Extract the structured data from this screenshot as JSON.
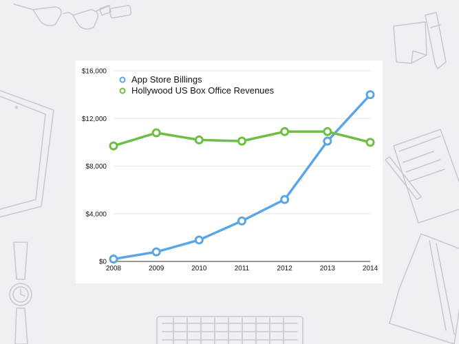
{
  "chart_data": {
    "type": "line",
    "title": "",
    "xlabel": "",
    "ylabel": "",
    "categories": [
      "2008",
      "2009",
      "2010",
      "2011",
      "2012",
      "2013",
      "2014"
    ],
    "yticks": [
      "$0",
      "$4,000",
      "$8,000",
      "$12,000",
      "$16,000"
    ],
    "ylim": [
      0,
      16000
    ],
    "grid": true,
    "legend_position": "top-left",
    "series": [
      {
        "name": "App Store Billings",
        "color": "#5aa5e6",
        "values": [
          200,
          800,
          1800,
          3400,
          5200,
          10100,
          14000
        ]
      },
      {
        "name": "Hollywood US Box Office Revenues",
        "color": "#6cbf42",
        "values": [
          9700,
          10800,
          10200,
          10100,
          10900,
          10900,
          10000
        ]
      }
    ]
  },
  "decorations": {
    "icons": [
      "glasses-icon",
      "usb-drive-icon",
      "sticky-note-icon",
      "pen-icon",
      "tablet-icon",
      "notebook-icon",
      "watch-icon",
      "keyboard-icon",
      "journal-icon"
    ]
  }
}
